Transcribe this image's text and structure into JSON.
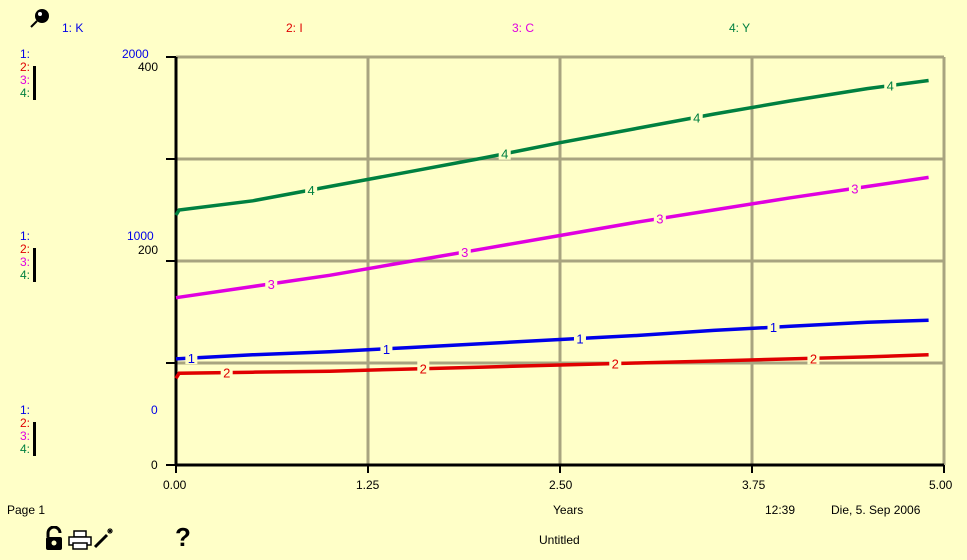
{
  "legend": [
    {
      "label": "1: K",
      "color": "#0000e8"
    },
    {
      "label": "2: I",
      "color": "#e00000"
    },
    {
      "label": "3: C",
      "color": "#e000e0"
    },
    {
      "label": "4: Y",
      "color": "#008040"
    }
  ],
  "axis_labels": {
    "top": {
      "blue": "2000",
      "black": "400"
    },
    "mid": {
      "blue": "1000",
      "black": "200"
    },
    "bottom": {
      "blue": "0",
      "black": "0"
    },
    "series_numbers": [
      "1:",
      "2:",
      "3:",
      "4:"
    ]
  },
  "footer": {
    "page": "Page 1",
    "xlabel": "Years",
    "time": "12:39",
    "date": "Die, 5. Sep 2006",
    "doc_title": "Untitled"
  },
  "icons": [
    "pin-icon",
    "lock-icon",
    "print-icon",
    "magic-wand-icon",
    "help-icon"
  ],
  "chart_data": {
    "type": "line",
    "xlabel": "Years",
    "x_ticks": [
      "0.00",
      "1.25",
      "2.50",
      "3.75",
      "5.00"
    ],
    "xlim": [
      0,
      5
    ],
    "grid": true,
    "axes": [
      {
        "series": [
          "1: K"
        ],
        "ylim": [
          0,
          2000
        ]
      },
      {
        "series": [
          "2: I",
          "3: C",
          "4: Y"
        ],
        "ylim": [
          0,
          400
        ]
      }
    ],
    "series": [
      {
        "name": "1: K",
        "color": "#0000e8",
        "ylim": [
          0,
          2000
        ],
        "points": [
          [
            0,
            520
          ],
          [
            0.5,
            540
          ],
          [
            1,
            555
          ],
          [
            1.5,
            575
          ],
          [
            2,
            595
          ],
          [
            2.5,
            615
          ],
          [
            3,
            635
          ],
          [
            3.5,
            660
          ],
          [
            4,
            680
          ],
          [
            4.5,
            700
          ],
          [
            4.9,
            710
          ]
        ]
      },
      {
        "name": "2: I",
        "color": "#e00000",
        "ylim": [
          0,
          400
        ],
        "points": [
          [
            0,
            85
          ],
          [
            0.02,
            90
          ],
          [
            0.5,
            91
          ],
          [
            1,
            92
          ],
          [
            1.5,
            94
          ],
          [
            2,
            96
          ],
          [
            2.5,
            98
          ],
          [
            3,
            100
          ],
          [
            3.5,
            102
          ],
          [
            4,
            104
          ],
          [
            4.5,
            106
          ],
          [
            4.9,
            108
          ]
        ]
      },
      {
        "name": "3: C",
        "color": "#e000e0",
        "ylim": [
          0,
          400
        ],
        "points": [
          [
            0,
            164
          ],
          [
            0.5,
            175
          ],
          [
            1,
            186
          ],
          [
            1.5,
            199
          ],
          [
            2,
            212
          ],
          [
            2.5,
            225
          ],
          [
            3,
            238
          ],
          [
            3.5,
            250
          ],
          [
            4,
            262
          ],
          [
            4.5,
            273
          ],
          [
            4.9,
            282
          ]
        ]
      },
      {
        "name": "4: Y",
        "color": "#008040",
        "ylim": [
          0,
          400
        ],
        "points": [
          [
            0,
            245
          ],
          [
            0.02,
            250
          ],
          [
            0.5,
            259
          ],
          [
            1,
            273
          ],
          [
            1.5,
            287
          ],
          [
            2,
            301
          ],
          [
            2.5,
            316
          ],
          [
            3,
            330
          ],
          [
            3.5,
            344
          ],
          [
            4,
            357
          ],
          [
            4.5,
            369
          ],
          [
            4.9,
            377
          ]
        ]
      }
    ],
    "series_markers": {
      "1: K": [
        0.1,
        1.37,
        2.63,
        3.89
      ],
      "2: I": [
        0.33,
        1.61,
        2.86,
        4.15
      ],
      "3: C": [
        0.62,
        1.88,
        3.15,
        4.42
      ],
      "4: Y": [
        0.88,
        2.14,
        3.39,
        4.65
      ]
    }
  }
}
